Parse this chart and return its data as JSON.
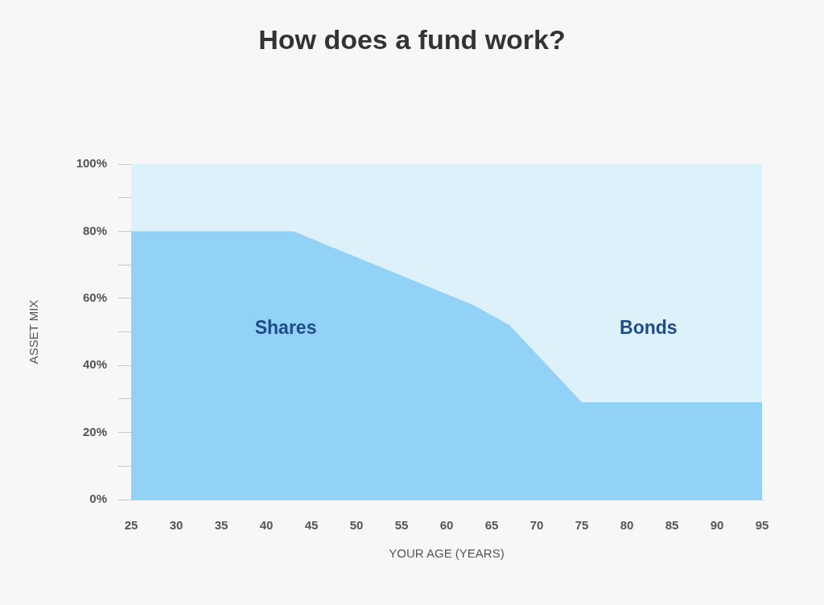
{
  "chart_data": {
    "type": "area",
    "title": "How does a fund work?",
    "xlabel": "YOUR AGE (YEARS)",
    "ylabel": "ASSET MIX",
    "x": [
      25,
      43,
      63,
      67,
      75,
      95
    ],
    "series": [
      {
        "name": "Shares",
        "color": "#92d2f6",
        "values": [
          80,
          80,
          58,
          52,
          29,
          29
        ]
      },
      {
        "name": "Bonds",
        "color": "#ddf1fa",
        "values": [
          20,
          20,
          42,
          48,
          71,
          71
        ]
      }
    ],
    "stacked": true,
    "xlim": [
      25,
      95
    ],
    "ylim": [
      0,
      100
    ],
    "xticks": [
      25,
      30,
      35,
      40,
      45,
      50,
      55,
      60,
      65,
      70,
      75,
      80,
      85,
      90,
      95
    ],
    "yticks": [
      {
        "value": 0,
        "label": "0%"
      },
      {
        "value": 10,
        "label": null
      },
      {
        "value": 20,
        "label": "20%"
      },
      {
        "value": 30,
        "label": null
      },
      {
        "value": 40,
        "label": "40%"
      },
      {
        "value": 50,
        "label": null
      },
      {
        "value": 60,
        "label": "60%"
      },
      {
        "value": 70,
        "label": null
      },
      {
        "value": 80,
        "label": "80%"
      },
      {
        "value": 90,
        "label": null
      },
      {
        "value": 100,
        "label": "100%"
      }
    ],
    "legend": false
  }
}
